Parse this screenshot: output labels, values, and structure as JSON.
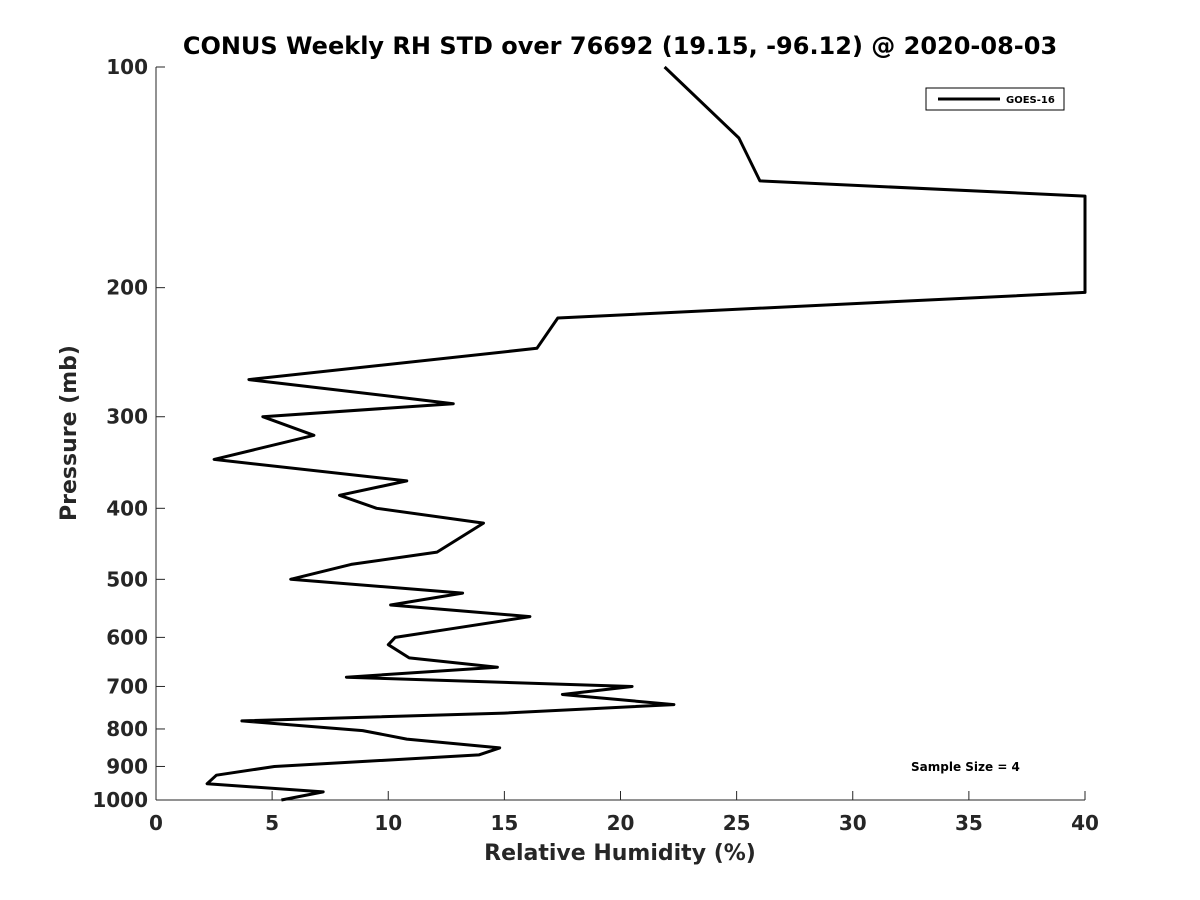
{
  "chart_data": {
    "type": "line",
    "title": "CONUS Weekly RH STD over 76692 (19.15, -96.12) @ 2020-08-03",
    "xlabel": "Relative Humidity (%)",
    "ylabel": "Pressure (mb)",
    "xlim": [
      0,
      40
    ],
    "ylim": [
      100,
      1000
    ],
    "y_scale": "log",
    "y_reversed": true,
    "x_ticks": [
      "0",
      "5",
      "10",
      "15",
      "20",
      "25",
      "30",
      "35",
      "40"
    ],
    "y_ticks": [
      "100",
      "200",
      "300",
      "400",
      "500",
      "600",
      "700",
      "800",
      "900",
      "1000"
    ],
    "legend": {
      "position": "top-right",
      "entries": [
        "GOES-16"
      ]
    },
    "annotation": "Sample Size = 4",
    "grid": false,
    "series": [
      {
        "name": "GOES-16",
        "color": "#000000",
        "points": [
          [
            21.9,
            100
          ],
          [
            25.1,
            125
          ],
          [
            26.0,
            143
          ],
          [
            40.0,
            150
          ],
          [
            40.0,
            203
          ],
          [
            17.3,
            220
          ],
          [
            16.4,
            242
          ],
          [
            4.0,
            267
          ],
          [
            12.8,
            288
          ],
          [
            4.6,
            300
          ],
          [
            6.8,
            318
          ],
          [
            2.5,
            343
          ],
          [
            10.8,
            367
          ],
          [
            7.9,
            384
          ],
          [
            9.5,
            400
          ],
          [
            14.1,
            419
          ],
          [
            12.1,
            459
          ],
          [
            8.4,
            477
          ],
          [
            5.8,
            500
          ],
          [
            13.2,
            522
          ],
          [
            10.1,
            542
          ],
          [
            16.1,
            562
          ],
          [
            12.7,
            584
          ],
          [
            10.3,
            600
          ],
          [
            10.0,
            614
          ],
          [
            10.9,
            640
          ],
          [
            14.7,
            659
          ],
          [
            8.2,
            680
          ],
          [
            20.5,
            700
          ],
          [
            17.5,
            718
          ],
          [
            22.3,
            741
          ],
          [
            15.0,
            761
          ],
          [
            3.7,
            780
          ],
          [
            8.9,
            804
          ],
          [
            10.8,
            826
          ],
          [
            14.8,
            849
          ],
          [
            13.9,
            868
          ],
          [
            5.1,
            900
          ],
          [
            2.6,
            925
          ],
          [
            2.2,
            950
          ],
          [
            7.2,
            975
          ],
          [
            5.4,
            1000
          ]
        ]
      }
    ]
  }
}
